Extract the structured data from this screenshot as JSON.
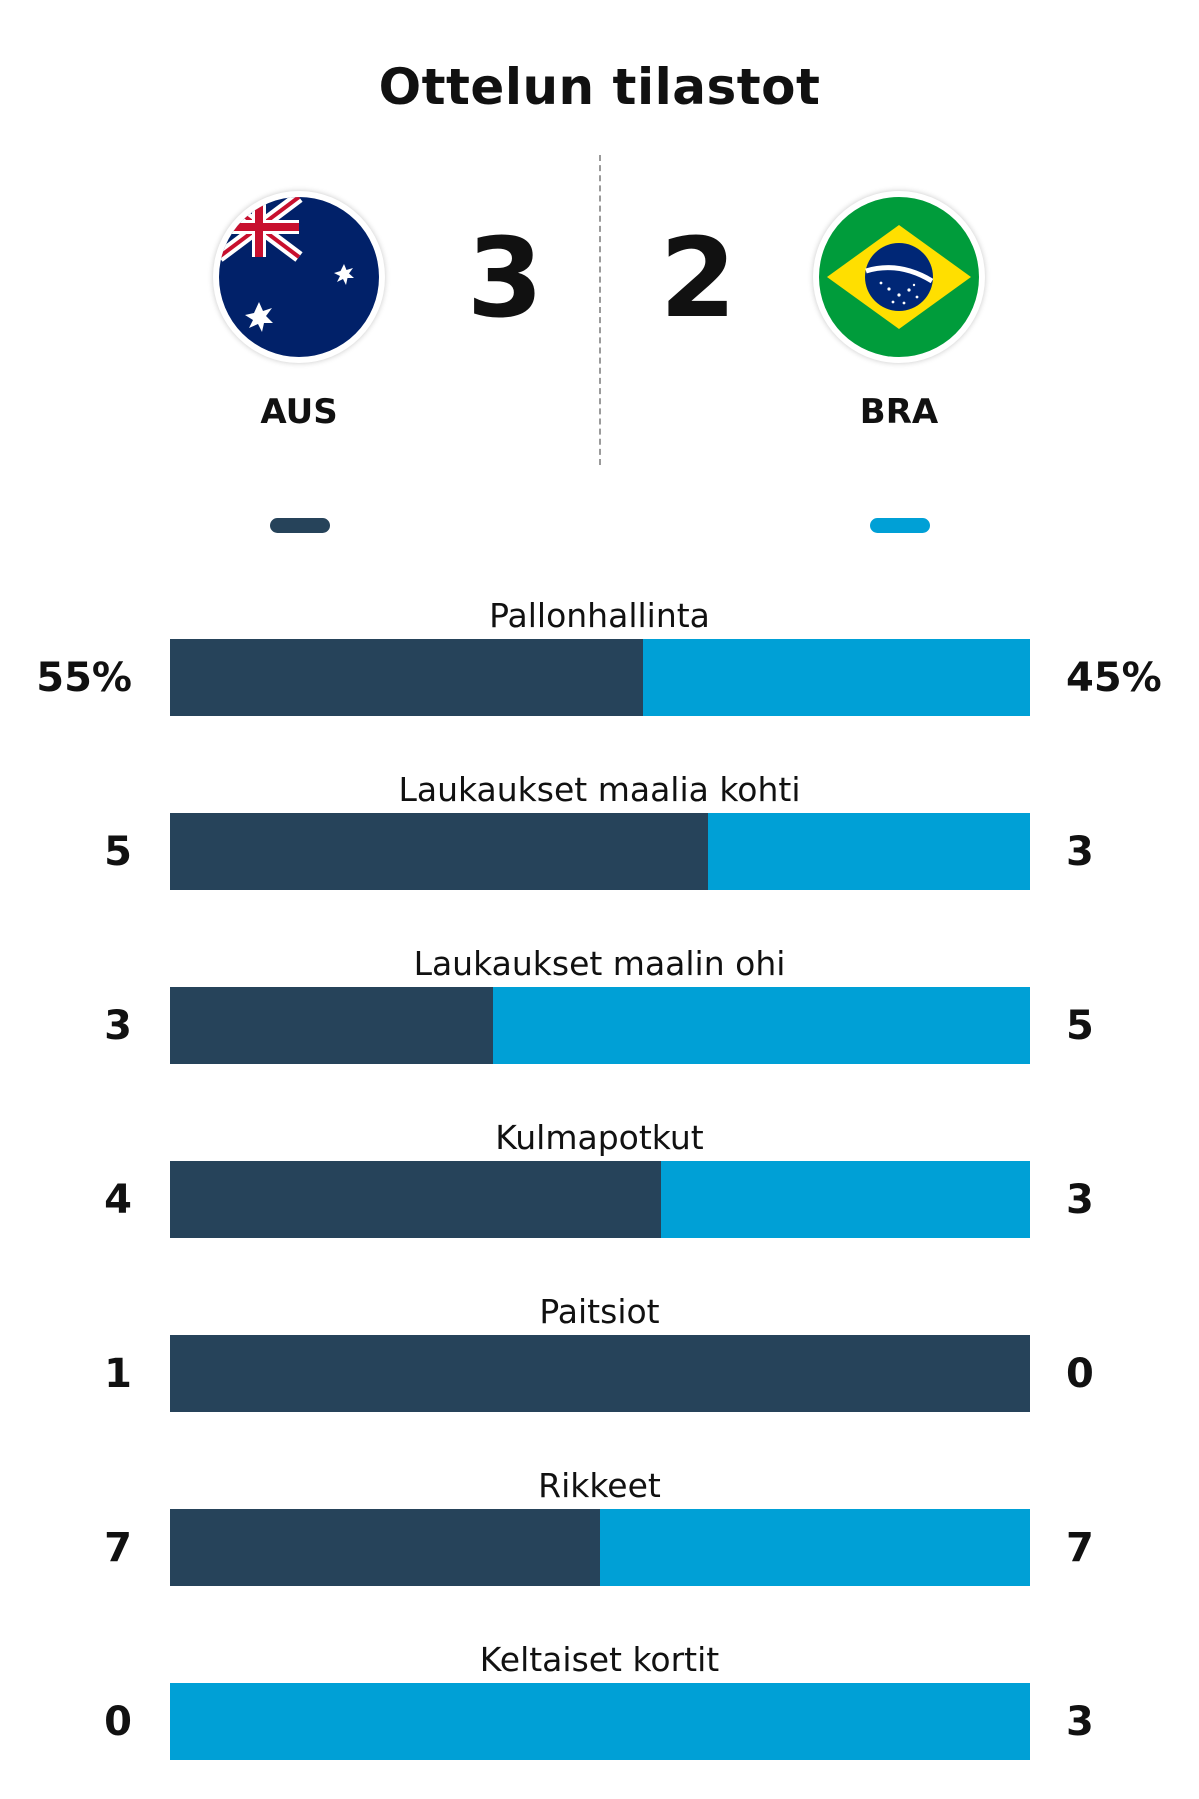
{
  "title": "Ottelun tilastot",
  "colors": {
    "home": "#26435a",
    "away": "#00a0d6"
  },
  "home": {
    "abbr": "AUS",
    "score": "3",
    "flag_icon": "australia-flag-icon"
  },
  "away": {
    "abbr": "BRA",
    "score": "2",
    "flag_icon": "brazil-flag-icon"
  },
  "stats": [
    {
      "label": "Pallonhallinta",
      "home": "55%",
      "away": "45%",
      "home_share": 0.55
    },
    {
      "label": "Laukaukset maalia kohti",
      "home": "5",
      "away": "3",
      "home_share": 0.625
    },
    {
      "label": "Laukaukset maalin ohi",
      "home": "3",
      "away": "5",
      "home_share": 0.375
    },
    {
      "label": "Kulmapotkut",
      "home": "4",
      "away": "3",
      "home_share": 0.5714
    },
    {
      "label": "Paitsiot",
      "home": "1",
      "away": "0",
      "home_share": 1.0
    },
    {
      "label": "Rikkeet",
      "home": "7",
      "away": "7",
      "home_share": 0.5
    },
    {
      "label": "Keltaiset kortit",
      "home": "0",
      "away": "3",
      "home_share": 0.0
    }
  ]
}
